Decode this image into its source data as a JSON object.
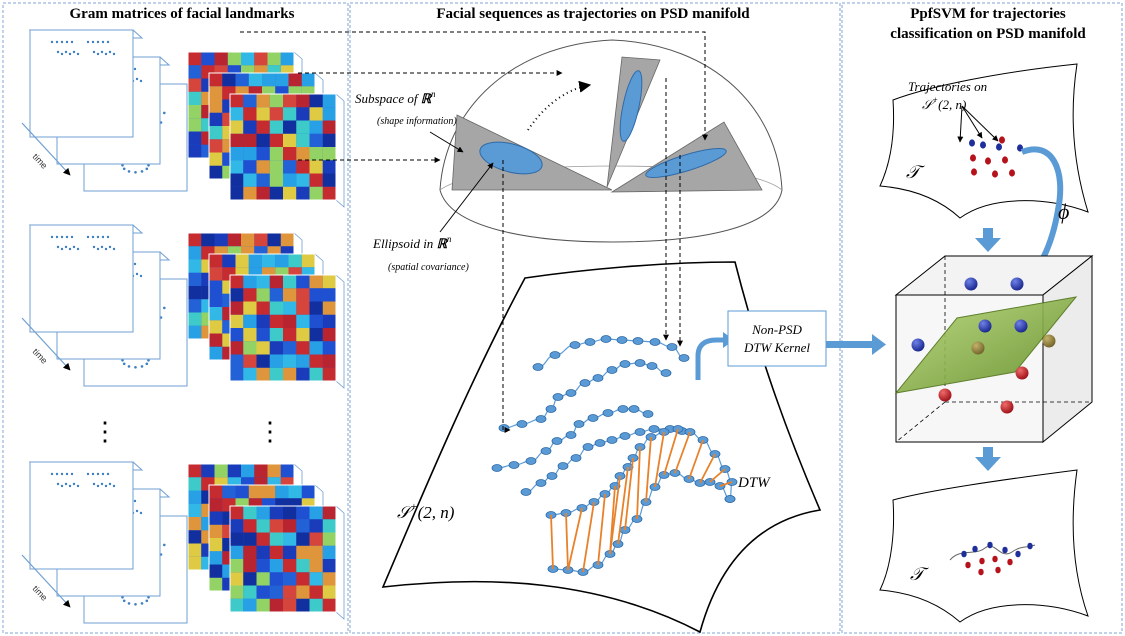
{
  "panels": {
    "left": {
      "title": "Gram matrices of facial landmarks",
      "time_label": "time",
      "ellipsis": "⋮"
    },
    "middle": {
      "title": "Facial sequences as trajectories on PSD manifold",
      "subspace_label_a": "Subspace of ",
      "subspace_label_b": "ℝ",
      "subspace_label_c": "n",
      "subspace_note": "(shape information)",
      "ellipsoid_label_a": "Ellipsoid in ",
      "ellipsoid_label_b": "ℝ",
      "ellipsoid_label_c": "n",
      "ellipsoid_note": "(spatial covariance)",
      "manifold_label_a": "𝒮",
      "manifold_label_b": "+",
      "manifold_label_c": "(2, n)",
      "dtw_label": "DTW"
    },
    "kernel_box": {
      "line1": "Non-PSD",
      "line2": "DTW Kernel"
    },
    "right": {
      "title_line1": "PpfSVM  for trajectories",
      "title_line2": "classification on PSD manifold",
      "traj_label_line1": "Trajectories on",
      "traj_label_a": "𝒮",
      "traj_label_b": "+",
      "traj_label_c": "(2, n)",
      "tangent_label_top": "𝒯",
      "tangent_label_bottom": "𝒯",
      "phi_label": "ϕ"
    }
  },
  "colors": {
    "panel_border": "#7fa6d3",
    "frame_blue": "#6f9fd0",
    "dot_blue": "#3d7fc2",
    "point_fill": "#5b9bd5",
    "point_stroke": "#2e6aa8",
    "dtw_orange": "#e8822a",
    "arrow_blue": "#5b9bd5",
    "sector_gray": "#a6a6a6",
    "ellipse_fill": "#5b9bd5",
    "plane_green": "#6e9a2e",
    "ball_blue": "#1e2f9c",
    "ball_red": "#b5121b",
    "ball_olive": "#8a7a35"
  }
}
